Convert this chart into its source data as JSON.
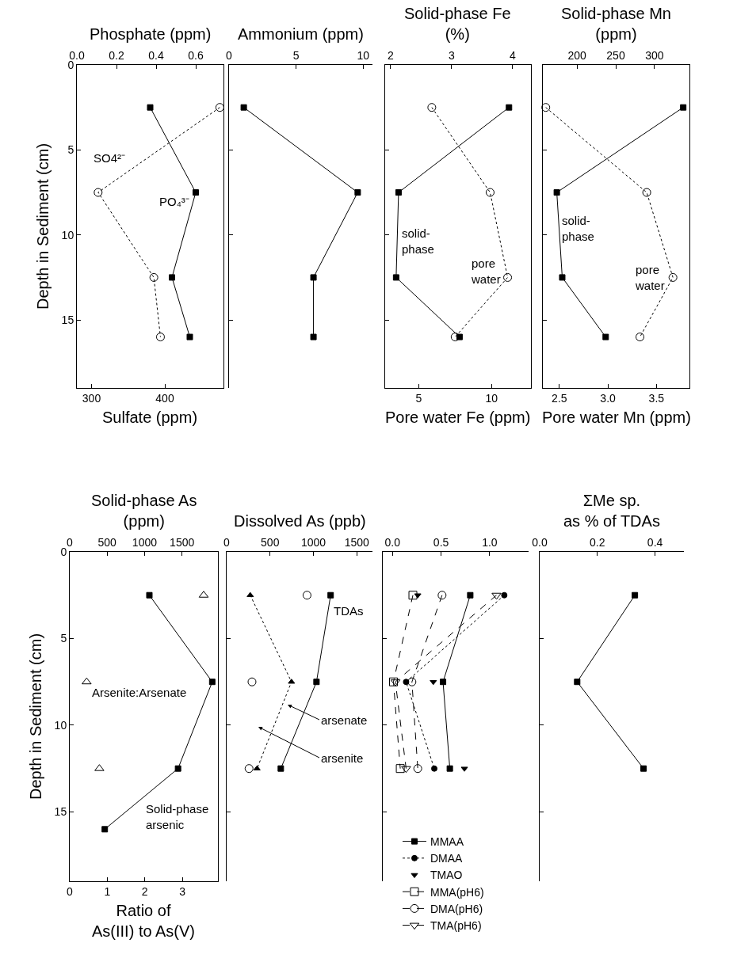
{
  "chart_data": [
    {
      "type": "line",
      "x2label": "Phosphate (ppm)",
      "xlabel": "Sulfate (ppm)",
      "ylabel": "Depth in Sediment (cm)",
      "x2lim": [
        0,
        0.74
      ],
      "x2ticks": [
        {
          "value": 0,
          "label": "0.0"
        },
        0.2,
        0.4,
        0.6
      ],
      "xlim": [
        280,
        480
      ],
      "xticks": [
        300,
        400
      ],
      "ylim": [
        19,
        0
      ],
      "yticks": [
        0,
        5,
        10,
        15
      ],
      "series": [
        {
          "axis": "x2",
          "name": "PO₄³⁻",
          "color": "#000000",
          "marker": "square",
          "line_style": "solid",
          "x": [
            0.37,
            0.6,
            0.48,
            0.57
          ],
          "values": [
            2.5,
            7.5,
            12.5,
            16
          ]
        },
        {
          "name": "SO4²⁻",
          "color": "#000000",
          "marker": "circle-open",
          "line_style": "dotted",
          "x": [
            475,
            309,
            385,
            394
          ],
          "values": [
            2.5,
            7.5,
            12.5,
            16
          ]
        }
      ]
    },
    {
      "type": "line",
      "xlabel": "Ammonium (ppm)",
      "xlim": [
        0,
        10.7
      ],
      "xticks": [
        0,
        5,
        10
      ],
      "ylim": [
        19,
        0
      ],
      "yticks": [
        0,
        5,
        10,
        15
      ],
      "tick_labels": "x",
      "series": [
        {
          "color": "#000000",
          "marker": "square",
          "line_style": "solid",
          "x": [
            1.1,
            9.6,
            6.3,
            6.3
          ],
          "values": [
            2.5,
            7.5,
            12.5,
            16
          ]
        }
      ]
    },
    {
      "type": "line",
      "x2label": "Solid-phase Fe\n(%)",
      "xlabel": "Pore water Fe (ppm)",
      "x2lim": [
        1.91,
        4.3
      ],
      "x2ticks": [
        2,
        3,
        4
      ],
      "xlim": [
        2.7,
        12.7
      ],
      "xticks": [
        5,
        10
      ],
      "ylim": [
        19,
        0
      ],
      "yticks": [
        0,
        5,
        10,
        15
      ],
      "tick_labels": "x",
      "series": [
        {
          "axis": "x2",
          "name": "solid-\nphase",
          "color": "#000000",
          "marker": "square",
          "line_style": "solid",
          "x": [
            3.94,
            2.13,
            2.09,
            3.13
          ],
          "values": [
            2.5,
            7.5,
            12.5,
            16
          ]
        },
        {
          "name": "pore\nwater",
          "color": "#000000",
          "marker": "circle-open",
          "line_style": "dotted",
          "x": [
            5.9,
            9.9,
            11.1,
            7.5
          ],
          "values": [
            2.5,
            7.5,
            12.5,
            16
          ]
        }
      ]
    },
    {
      "type": "line",
      "x2label": "Solid-phase Mn\n(ppm)",
      "xlabel": "Pore water Mn (ppm)",
      "x2lim": [
        156,
        345
      ],
      "x2ticks": [
        200,
        250,
        300
      ],
      "xlim": [
        2.33,
        3.84
      ],
      "xticks": [
        2.5,
        {
          "value": 3,
          "label": "3.0"
        },
        3.5
      ],
      "ylim": [
        19,
        0
      ],
      "yticks": [
        0,
        5,
        10,
        15
      ],
      "tick_labels": "x",
      "series": [
        {
          "axis": "x2",
          "name": "solid-\nphase",
          "color": "#000000",
          "marker": "square",
          "line_style": "solid",
          "x": [
            337,
            174,
            181,
            237
          ],
          "values": [
            2.5,
            7.5,
            12.5,
            16
          ]
        },
        {
          "name": "pore\nwater",
          "color": "#000000",
          "marker": "circle-open",
          "line_style": "dotted",
          "x": [
            2.36,
            3.4,
            3.67,
            3.33
          ],
          "values": [
            2.5,
            7.5,
            12.5,
            16
          ]
        }
      ]
    },
    {
      "type": "line",
      "x2label": "Solid-phase As\n(ppm)",
      "xlabel": "Ratio of\nAs(III) to As(V)",
      "ylabel": "Depth in Sediment (cm)",
      "x2lim": [
        0,
        1980
      ],
      "x2ticks": [
        0,
        500,
        1000,
        1500
      ],
      "xlim": [
        0,
        3.95
      ],
      "xticks": [
        0,
        1,
        2,
        3
      ],
      "ylim": [
        19,
        0
      ],
      "yticks": [
        0,
        5,
        10,
        15
      ],
      "series": [
        {
          "axis": "x2",
          "name": "Solid-phase\narsenic",
          "color": "#000000",
          "marker": "square",
          "line_style": "solid",
          "x": [
            1064,
            1904,
            1447,
            468
          ],
          "values": [
            2.5,
            7.5,
            12.5,
            16
          ]
        },
        {
          "type": "scatter",
          "name": "Arsenite:Arsenate",
          "color": "#000000",
          "marker": "triangle-open",
          "x": [
            3.57,
            0.45,
            0.79
          ],
          "values": [
            2.5,
            7.5,
            12.5
          ]
        }
      ]
    },
    {
      "type": "line",
      "xlabel": "Dissolved As (ppb)",
      "xlim": [
        0,
        1680
      ],
      "xticks": [
        0,
        500,
        1000,
        1500
      ],
      "ylim": [
        19,
        0
      ],
      "yticks": [
        0,
        5,
        10,
        15
      ],
      "tick_labels": "x",
      "series": [
        {
          "name": "TDAs",
          "color": "#000000",
          "marker": "square",
          "line_style": "solid",
          "x": [
            1198,
            1035,
            624
          ],
          "values": [
            2.5,
            7.5,
            12.5
          ]
        },
        {
          "color": "#000000",
          "marker": "triangle",
          "line_style": "dotted",
          "x": [
            272,
            747,
            350
          ],
          "values": [
            2.5,
            7.5,
            12.5
          ]
        },
        {
          "type": "scatter",
          "color": "#000000",
          "marker": "circle-open",
          "x": [
            926,
            292,
            258
          ],
          "values": [
            2.5,
            7.5,
            12.5
          ]
        }
      ],
      "annotations": [
        "arsenate",
        "arsenite"
      ]
    },
    {
      "type": "line",
      "xlim": [
        -0.1,
        1.4
      ],
      "xticks": [
        {
          "value": 0,
          "label": "0.0"
        },
        0.5,
        {
          "value": 1,
          "label": "1.0"
        }
      ],
      "ylim": [
        19,
        0
      ],
      "yticks": [
        0,
        5,
        10,
        15
      ],
      "tick_labels": "x",
      "legend": "bottom",
      "series": [
        {
          "name": "MMAA",
          "color": "#000000",
          "marker": "square",
          "line_style": "solid",
          "x": [
            0.8,
            0.52,
            0.59
          ],
          "values": [
            2.5,
            7.5,
            12.5
          ]
        },
        {
          "name": "DMAA",
          "color": "#000000",
          "marker": "circle",
          "line_style": "dotted",
          "x": [
            1.15,
            0.14,
            0.43
          ],
          "values": [
            2.5,
            7.5,
            12.5
          ]
        },
        {
          "name": "TMAO",
          "type": "scatter",
          "color": "#000000",
          "marker": "triangle-down",
          "x": [
            0.26,
            0.42,
            0.74
          ],
          "values": [
            2.5,
            7.5,
            12.5
          ]
        },
        {
          "name": "MMA(pH6)",
          "color": "#000000",
          "marker": "square-open",
          "line_style": "dashed",
          "x": [
            0.21,
            0.01,
            0.08
          ],
          "values": [
            2.5,
            7.5,
            12.5
          ]
        },
        {
          "name": "DMA(pH6)",
          "color": "#000000",
          "marker": "circle-open",
          "line_style": "dashed",
          "x": [
            0.51,
            0.2,
            0.26
          ],
          "values": [
            2.5,
            7.5,
            12.5
          ]
        },
        {
          "name": "TMA(pH6)",
          "color": "#000000",
          "marker": "triangle-down-open",
          "line_style": "dashed",
          "x": [
            1.07,
            0.03,
            0.14
          ],
          "values": [
            2.5,
            7.5,
            12.5
          ]
        }
      ]
    },
    {
      "type": "line",
      "xlabel": "ΣMe sp.\nas % of TDAs",
      "xlim": [
        0,
        0.5
      ],
      "xticks": [
        {
          "value": 0,
          "label": "0.0"
        },
        0.2,
        0.4
      ],
      "ylim": [
        19,
        0
      ],
      "yticks": [
        0,
        5,
        10,
        15
      ],
      "tick_labels": "x",
      "series": [
        {
          "color": "#000000",
          "marker": "square",
          "line_style": "solid",
          "x": [
            0.33,
            0.13,
            0.36
          ],
          "values": [
            2.5,
            7.5,
            12.5
          ]
        }
      ]
    }
  ]
}
